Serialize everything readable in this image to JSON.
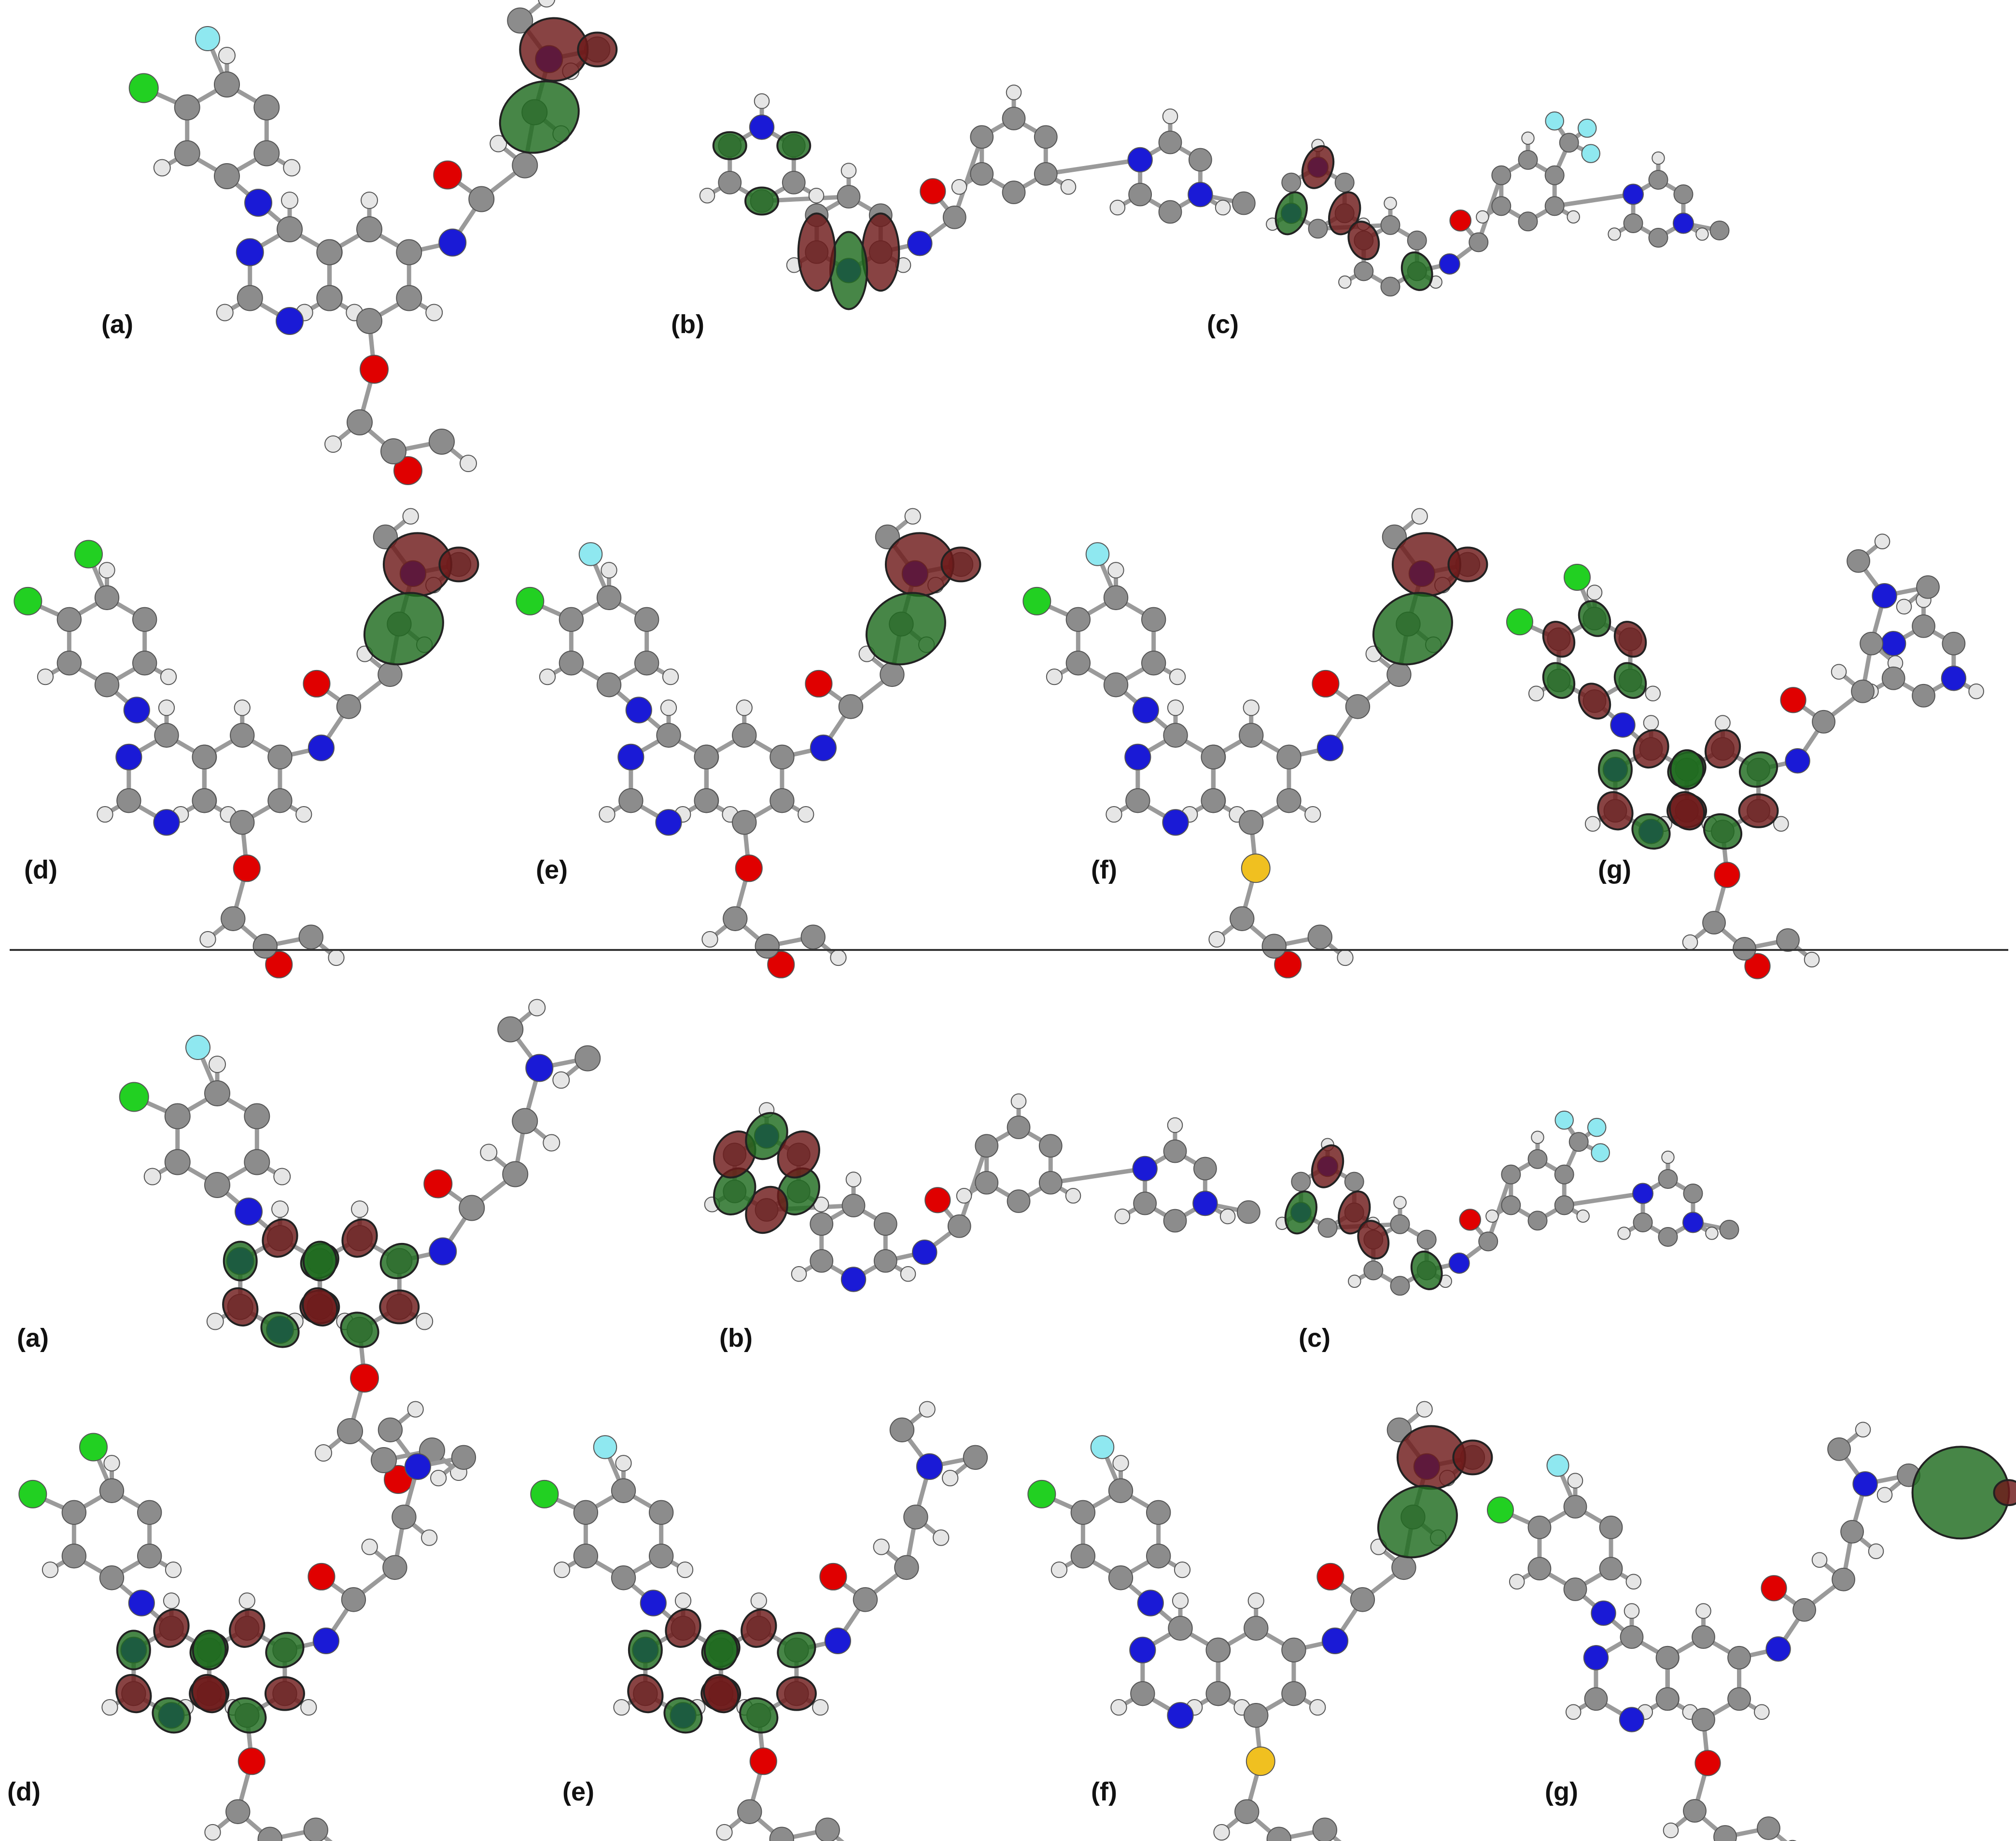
{
  "colors": {
    "background": "#ffffff",
    "carbon": "#8c8c8c",
    "hydrogen": "#e6e6e6",
    "nitrogen": "#1a1ad6",
    "oxygen": "#e00000",
    "chlorine": "#22d022",
    "fluorine": "#8fe8f0",
    "sulfur": "#f0c020",
    "orbital_positive": "#1f6b1f",
    "orbital_negative": "#6e1a1a",
    "separator": "#333333"
  },
  "sections": [
    {
      "name": "upper",
      "panels": [
        {
          "id": "a",
          "label": "(a)",
          "substituents": [
            "F",
            "Cl",
            "O-alkoxy"
          ],
          "lobes_on": "side-chain amine"
        },
        {
          "id": "b",
          "label": "(b)",
          "substituents": [
            "pyridyl",
            "piperazine"
          ],
          "lobes_on": "aromatic rings"
        },
        {
          "id": "c",
          "label": "(c)",
          "substituents": [
            "CF3",
            "piperazine"
          ],
          "lobes_on": "heteroaryl rings"
        },
        {
          "id": "d",
          "label": "(d)",
          "substituents": [
            "Cl",
            "Cl",
            "O-alkoxy"
          ],
          "lobes_on": "side-chain amine"
        },
        {
          "id": "e",
          "label": "(e)",
          "substituents": [
            "F",
            "Cl",
            "O-alkoxy"
          ],
          "lobes_on": "side-chain amine"
        },
        {
          "id": "f",
          "label": "(f)",
          "substituents": [
            "F",
            "Cl",
            "S-alkyl"
          ],
          "lobes_on": "side-chain amine"
        },
        {
          "id": "g",
          "label": "(g)",
          "substituents": [
            "Cl",
            "piperazine",
            "O-alkoxy"
          ],
          "lobes_on": "aromatic core"
        }
      ]
    },
    {
      "name": "lower",
      "panels": [
        {
          "id": "a",
          "label": "(a)",
          "substituents": [
            "F",
            "Cl",
            "O-alkoxy"
          ],
          "lobes_on": "quinazoline core"
        },
        {
          "id": "b",
          "label": "(b)",
          "substituents": [
            "pyridyl",
            "piperazine"
          ],
          "lobes_on": "pyridyl ring"
        },
        {
          "id": "c",
          "label": "(c)",
          "substituents": [
            "CF3",
            "piperazine"
          ],
          "lobes_on": "heteroaryl rings"
        },
        {
          "id": "d",
          "label": "(d)",
          "substituents": [
            "Cl",
            "Cl",
            "O-alkoxy"
          ],
          "lobes_on": "quinazoline core"
        },
        {
          "id": "e",
          "label": "(e)",
          "substituents": [
            "F",
            "Cl",
            "O-alkoxy"
          ],
          "lobes_on": "quinazoline core"
        },
        {
          "id": "f",
          "label": "(f)",
          "substituents": [
            "F",
            "Cl",
            "S-alkyl"
          ],
          "lobes_on": "side-chain amine"
        },
        {
          "id": "g",
          "label": "(g)",
          "substituents": [
            "F",
            "Cl",
            "O-alkoxy"
          ],
          "lobes_on": "terminal amine"
        }
      ]
    }
  ]
}
